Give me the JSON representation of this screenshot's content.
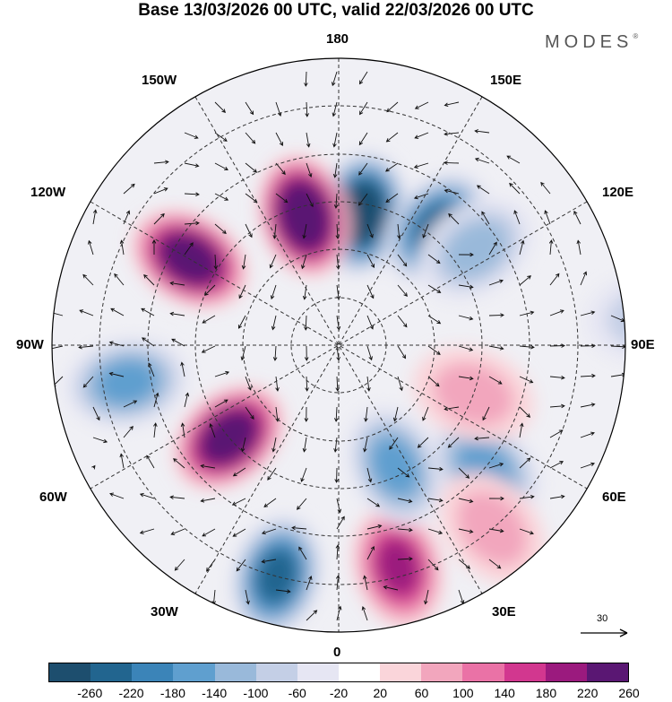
{
  "title": "Base 13/03/2026 00 UTC, valid 22/03/2026 00 UTC",
  "brand": "MODES",
  "brand_mark": "®",
  "map_labels": {
    "lon_180": "180",
    "lon_150w": "150W",
    "lon_150e": "150E",
    "lon_120w": "120W",
    "lon_120e": "120E",
    "lon_90w": "90W",
    "lon_90e": "90E",
    "lon_60w": "60W",
    "lon_60e": "60E",
    "lon_30w": "30W",
    "lon_30e": "30E",
    "lon_0": "0"
  },
  "reference_vector": "30",
  "colorbar": {
    "ticks": [
      "-260",
      "-220",
      "-180",
      "-140",
      "-100",
      "-60",
      "-20",
      "20",
      "60",
      "100",
      "140",
      "180",
      "220",
      "260"
    ],
    "colors": [
      "#1d4e6e",
      "#22658f",
      "#3b84b8",
      "#5f9fcf",
      "#99b9da",
      "#c4cfe6",
      "#e6e6f3",
      "#ffffff",
      "#fad5da",
      "#f2a6bd",
      "#ea72a6",
      "#d2378f",
      "#9b1a7e",
      "#5a1773"
    ]
  },
  "anomaly_centers": [
    {
      "lon": 170,
      "lat": 62,
      "value": -300
    },
    {
      "lon": -165,
      "lat": 62,
      "value": 300
    },
    {
      "lon": 140,
      "lat": 58,
      "value": -230
    },
    {
      "lon": 125,
      "lat": 55,
      "value": -120
    },
    {
      "lon": -120,
      "lat": 54,
      "value": 290
    },
    {
      "lon": -80,
      "lat": 45,
      "value": -170
    },
    {
      "lon": -50,
      "lat": 60,
      "value": 270
    },
    {
      "lon": -15,
      "lat": 40,
      "value": -220
    },
    {
      "lon": 15,
      "lat": 42,
      "value": 200
    },
    {
      "lon": 25,
      "lat": 62,
      "value": -150
    },
    {
      "lon": 50,
      "lat": 50,
      "value": -150
    },
    {
      "lon": 95,
      "lat": 25,
      "value": -90
    },
    {
      "lon": 70,
      "lat": 60,
      "value": 80
    },
    {
      "lon": 40,
      "lat": 40,
      "value": 60
    }
  ]
}
